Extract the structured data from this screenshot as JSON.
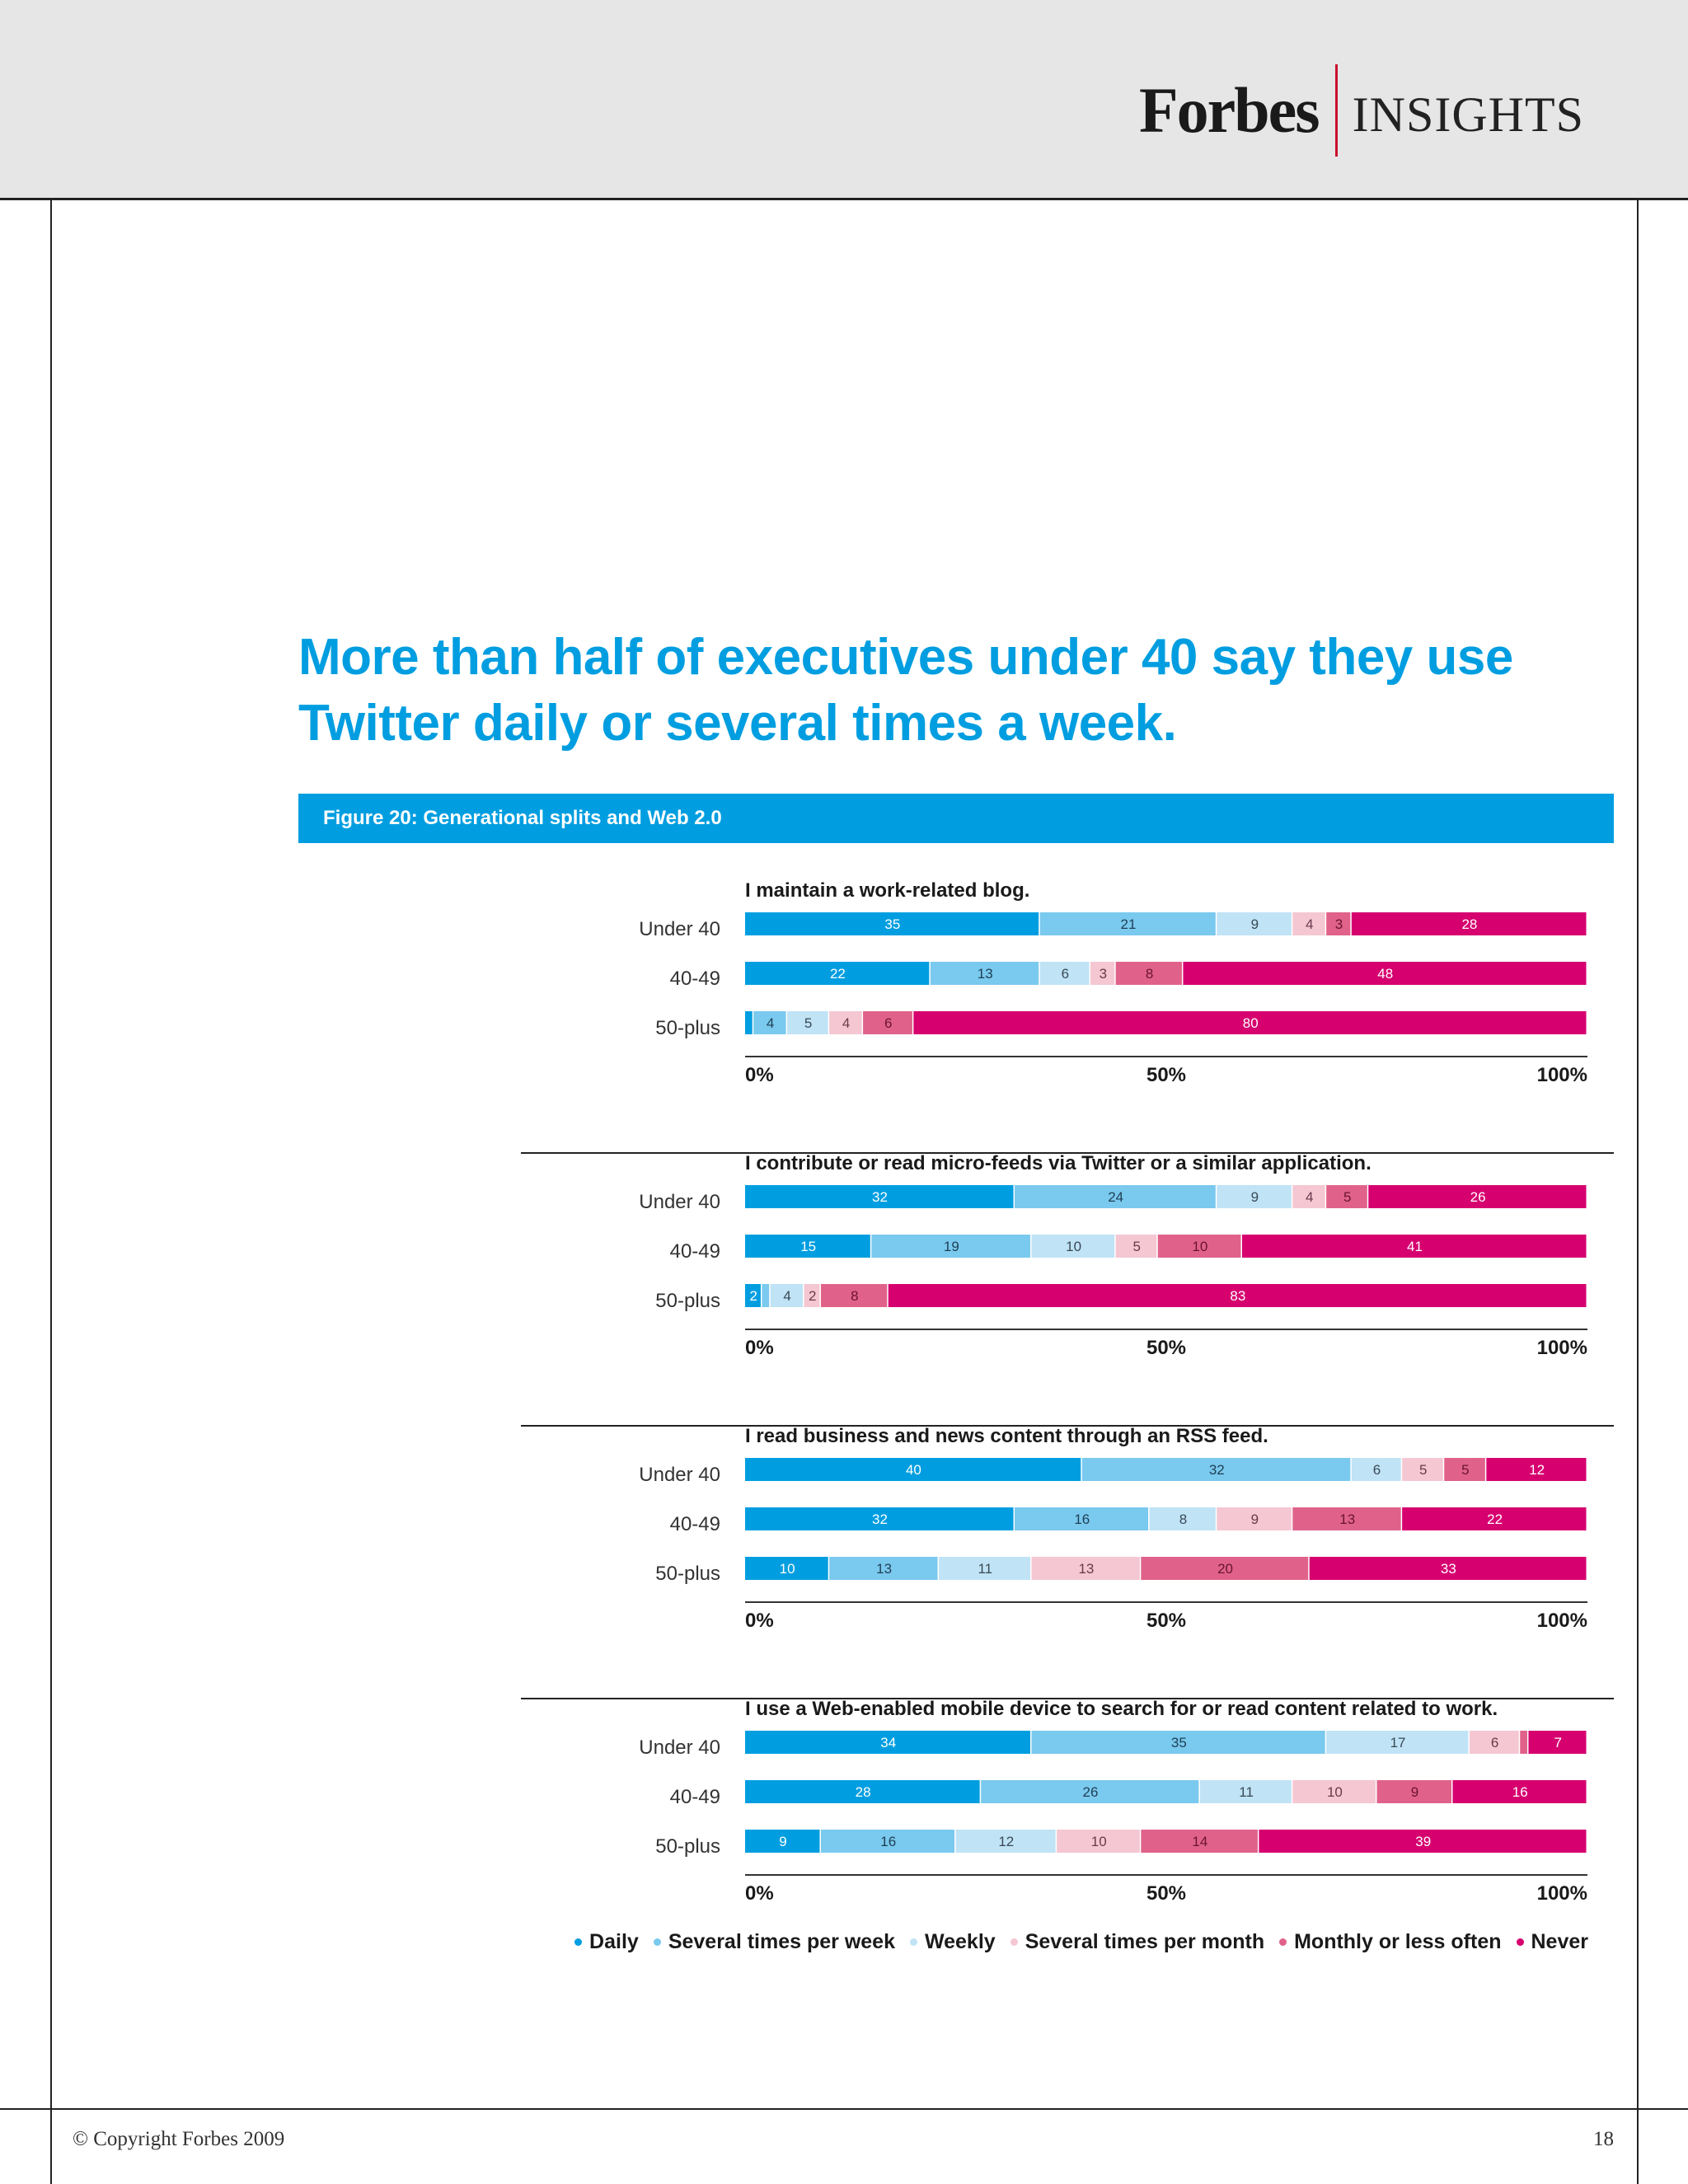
{
  "brand": {
    "name": "Forbes",
    "sub": "INSIGHTS"
  },
  "headline": "More than half of executives under 40 say they use Twitter daily or several times a week.",
  "figure_title": "Figure 20: Generational splits and Web 2.0",
  "colors": {
    "accent": "#009ee0",
    "categories": [
      "#009ee0",
      "#7ac9ee",
      "#c0e3f6",
      "#f4c7d3",
      "#e0628a",
      "#d6006f"
    ],
    "label_text": [
      "#ffffff",
      "#1f3f55",
      "#3a4a55",
      "#6a3a4a",
      "#6a1430",
      "#ffffff"
    ]
  },
  "chart_data": {
    "type": "bar",
    "orientation": "horizontal",
    "stacked": true,
    "categories": [
      "Under 40",
      "40-49",
      "50-plus"
    ],
    "legend_labels": [
      "Daily",
      "Several times per week",
      "Weekly",
      "Several times per month",
      "Monthly or less often",
      "Never"
    ],
    "xlim": [
      0,
      100
    ],
    "tick_labels": [
      "0%",
      "50%",
      "100%"
    ],
    "legend_position": "bottom-right",
    "charts": [
      {
        "title": "I maintain a work-related blog.",
        "rows": [
          {
            "label": "Under 40",
            "values": [
              35,
              21,
              9,
              4,
              3,
              28
            ]
          },
          {
            "label": "40-49",
            "values": [
              22,
              13,
              6,
              3,
              8,
              48
            ]
          },
          {
            "label": "50-plus",
            "values": [
              1,
              4,
              5,
              4,
              6,
              80
            ],
            "shown_labels": [
              "",
              "4",
              "5",
              "4",
              "6",
              "80"
            ]
          }
        ]
      },
      {
        "title": "I contribute or read micro-feeds via Twitter or a similar application.",
        "rows": [
          {
            "label": "Under 40",
            "values": [
              32,
              24,
              9,
              4,
              5,
              26
            ]
          },
          {
            "label": "40-49",
            "values": [
              15,
              19,
              10,
              5,
              10,
              41
            ]
          },
          {
            "label": "50-plus",
            "values": [
              2,
              1,
              4,
              2,
              8,
              83
            ],
            "shown_labels": [
              "2",
              "",
              "4",
              "2",
              "8",
              "83"
            ]
          }
        ]
      },
      {
        "title": "I read business and news content through an RSS feed.",
        "rows": [
          {
            "label": "Under 40",
            "values": [
              40,
              32,
              6,
              5,
              5,
              12
            ]
          },
          {
            "label": "40-49",
            "values": [
              32,
              16,
              8,
              9,
              13,
              22
            ]
          },
          {
            "label": "50-plus",
            "values": [
              10,
              13,
              11,
              13,
              20,
              33
            ]
          }
        ]
      },
      {
        "title": "I use a Web-enabled mobile device to search for or read content related to work.",
        "rows": [
          {
            "label": "Under 40",
            "values": [
              34,
              35,
              17,
              6,
              1,
              7
            ],
            "shown_labels": [
              "34",
              "35",
              "17",
              "6",
              "",
              "7"
            ]
          },
          {
            "label": "40-49",
            "values": [
              28,
              26,
              11,
              10,
              9,
              16
            ]
          },
          {
            "label": "50-plus",
            "values": [
              9,
              16,
              12,
              10,
              14,
              39
            ]
          }
        ]
      }
    ]
  },
  "footer": {
    "copyright": "© Copyright Forbes 2009",
    "page_number": "18"
  }
}
